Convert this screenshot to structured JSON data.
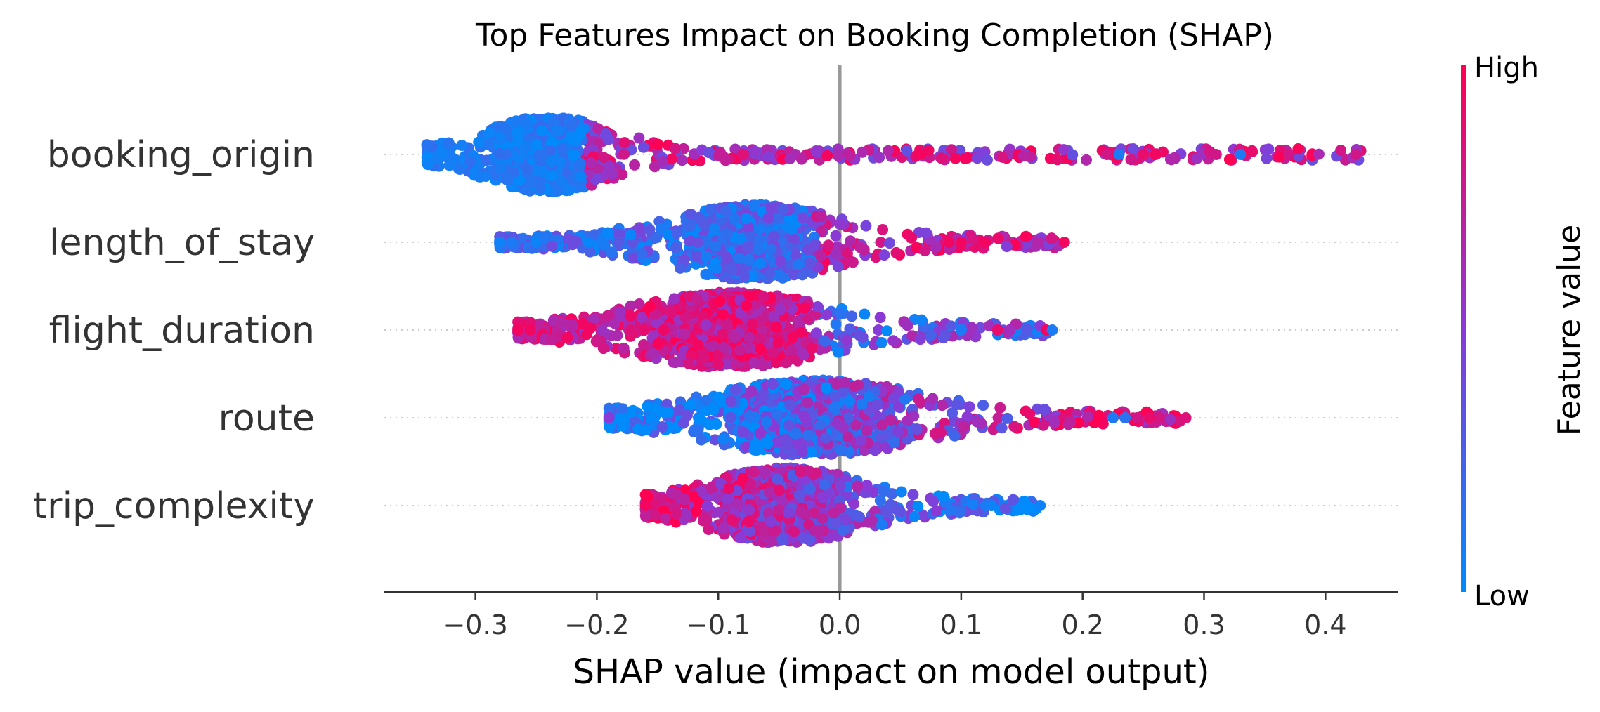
{
  "chart_data": {
    "type": "scatter",
    "subtype": "shap-beeswarm",
    "title": "Top Features Impact on Booking Completion (SHAP)",
    "xlabel": "SHAP value (impact on model output)",
    "xlim": [
      -0.375,
      0.46
    ],
    "xticks": [
      -0.3,
      -0.2,
      -0.1,
      0.0,
      0.1,
      0.2,
      0.3,
      0.4
    ],
    "xtick_labels": [
      "−0.3",
      "−0.2",
      "−0.1",
      "0.0",
      "0.1",
      "0.2",
      "0.3",
      "0.4"
    ],
    "zero_line": 0.0,
    "colorbar": {
      "title": "Feature value",
      "high_label": "High",
      "low_label": "Low",
      "low_color": "#008bfb",
      "high_color": "#ff0052",
      "mid_color": "#8a3ad6"
    },
    "features": [
      {
        "name": "booking_origin",
        "center": -0.24,
        "spread": 0.045,
        "extent": [
          -0.34,
          0.43
        ],
        "outliers": [
          0.22,
          0.23,
          0.25,
          0.26,
          0.31,
          0.33,
          0.37,
          0.425
        ],
        "outlier_colors": [
          0.8,
          0.1,
          0.9,
          0.95,
          0.8,
          0.1,
          0.8,
          0.8
        ]
      },
      {
        "name": "length_of_stay",
        "center": -0.07,
        "spread": 0.06,
        "extent": [
          -0.28,
          0.185
        ],
        "outliers": [
          -0.28,
          -0.27,
          -0.25,
          0.09,
          0.1,
          0.12,
          0.185
        ],
        "outlier_colors": [
          0.05,
          0.1,
          0.05,
          0.95,
          0.95,
          0.95,
          0.95
        ]
      },
      {
        "name": "flight_duration",
        "center": -0.09,
        "spread": 0.07,
        "extent": [
          -0.265,
          0.175
        ],
        "outliers": [
          -0.265,
          -0.255,
          0.1,
          0.13,
          0.14,
          0.17,
          0.175
        ],
        "outlier_colors": [
          0.95,
          0.95,
          0.1,
          0.9,
          0.6,
          0.95,
          0.1
        ]
      },
      {
        "name": "route",
        "center": -0.02,
        "spread": 0.075,
        "extent": [
          -0.19,
          0.285
        ],
        "outliers": [
          -0.19,
          0.225,
          0.235,
          0.245,
          0.255,
          0.285
        ],
        "outlier_colors": [
          0.5,
          0.1,
          0.15,
          0.8,
          0.9,
          0.85
        ],
        "trend_high_right": true
      },
      {
        "name": "trip_complexity",
        "center": -0.045,
        "spread": 0.055,
        "extent": [
          -0.16,
          0.165
        ],
        "outliers": [
          -0.16,
          0.12,
          0.125,
          0.165
        ],
        "outlier_colors": [
          0.95,
          0.1,
          0.05,
          0.05
        ],
        "trend_high_left": true
      }
    ]
  }
}
